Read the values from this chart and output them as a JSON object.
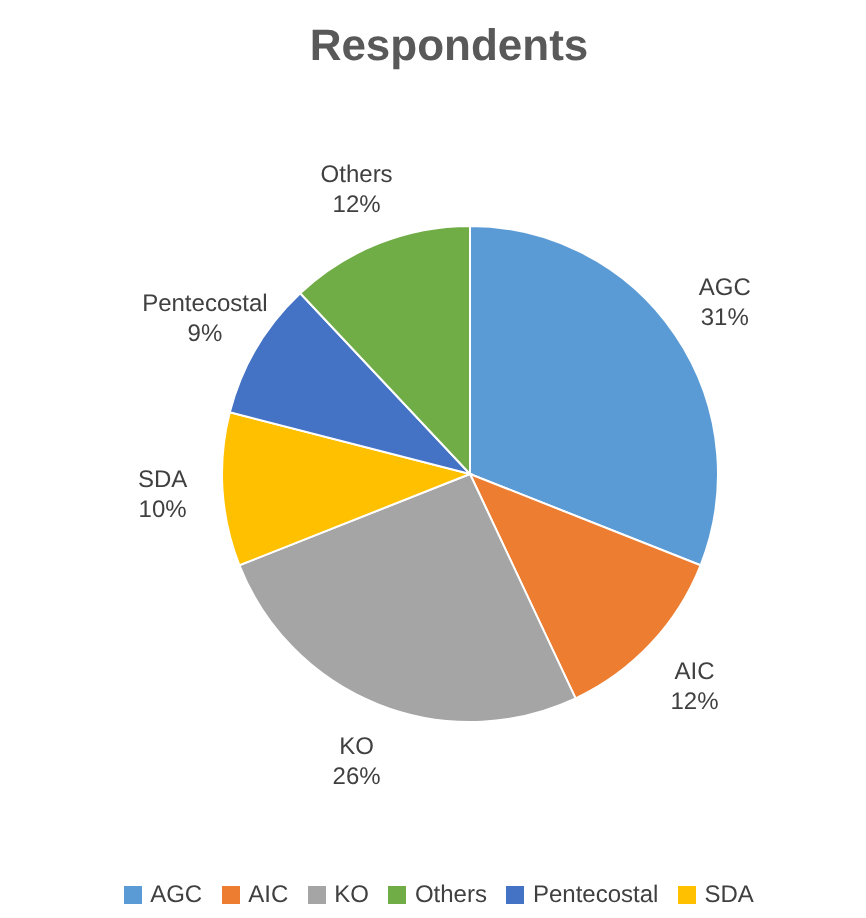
{
  "chart_data": {
    "type": "pie",
    "title": "Respondents",
    "categories": [
      "AGC",
      "AIC",
      "KO",
      "SDA",
      "Pentecostal",
      "Others"
    ],
    "values": [
      31,
      12,
      26,
      10,
      9,
      12
    ],
    "colors": [
      "#5b9bd5",
      "#ed7d31",
      "#a5a5a5",
      "#ffc000",
      "#4472c4",
      "#70ad47"
    ],
    "value_labels": [
      "31%",
      "12%",
      "26%",
      "10%",
      "9%",
      "12%"
    ],
    "legend": "bottom"
  }
}
